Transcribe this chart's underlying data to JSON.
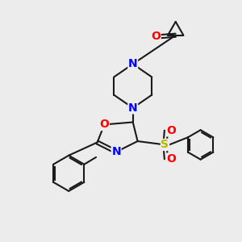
{
  "bg_color": "#ececec",
  "bond_color": "#1a1a1a",
  "N_color": "#0000ff",
  "O_color": "#ff0000",
  "S_color": "#b8b800",
  "line_width": 1.5,
  "font_size": 10,
  "xlim": [
    0,
    10
  ],
  "ylim": [
    0,
    10
  ]
}
